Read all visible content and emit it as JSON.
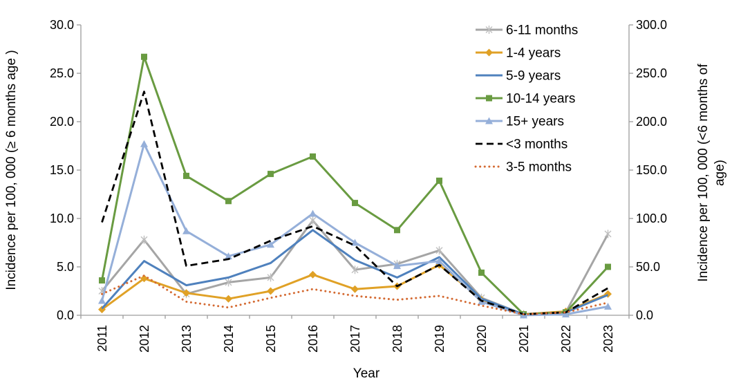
{
  "figure": {
    "xlabel": "Year",
    "left_axis_label": "Incidence per 100, 000 (≥ 6 months age )",
    "right_axis_label_line1": "Incidence per 100, 000 (<6 months of",
    "right_axis_label_line2": "age)"
  },
  "chart_data": {
    "type": "line",
    "title": "",
    "xlabel": "Year",
    "categories": [
      "2011",
      "2012",
      "2013",
      "2014",
      "2015",
      "2016",
      "2017",
      "2018",
      "2019",
      "2020",
      "2021",
      "2022",
      "2023"
    ],
    "left_axis": {
      "label": "Incidence per 100, 000 (≥ 6 months age )",
      "min": 0,
      "max": 30,
      "step": 5,
      "tick_values": [
        0,
        5,
        10,
        15,
        20,
        25,
        30
      ],
      "tick_labels": [
        "0.0",
        "5.0",
        "10.0",
        "15.0",
        "20.0",
        "25.0",
        "30.0"
      ]
    },
    "right_axis": {
      "label": "Incidence per 100, 000 (<6 months of age)",
      "min": 0,
      "max": 300,
      "step": 50,
      "tick_values": [
        0,
        50,
        100,
        150,
        200,
        250,
        300
      ],
      "tick_labels": [
        "0.0",
        "50.0",
        "100.0",
        "150.0",
        "200.0",
        "250.0",
        "300.0"
      ]
    },
    "grid": false,
    "legend_position": "top-right",
    "axis_color": "#9c9c9c",
    "series": [
      {
        "name": "6-11 months",
        "axis": "left",
        "color": "#a5a5a5",
        "marker": "star",
        "marker_color": "#bfbfbf",
        "dash": "solid",
        "values": [
          2.5,
          7.8,
          2.2,
          3.4,
          3.9,
          9.8,
          4.7,
          5.3,
          6.7,
          1.8,
          0.1,
          0.3,
          8.4
        ]
      },
      {
        "name": "1-4 years",
        "axis": "left",
        "color": "#e0a126",
        "marker": "diamond",
        "marker_color": "#e0a126",
        "dash": "solid",
        "values": [
          0.6,
          3.8,
          2.3,
          1.7,
          2.5,
          4.2,
          2.7,
          3.0,
          5.2,
          1.6,
          0.1,
          0.4,
          2.2
        ]
      },
      {
        "name": "5-9 years",
        "axis": "left",
        "color": "#4f81bd",
        "marker": "none",
        "marker_color": "#4f81bd",
        "dash": "solid",
        "values": [
          0.7,
          5.6,
          3.1,
          3.9,
          5.4,
          8.8,
          5.7,
          3.9,
          6.0,
          1.7,
          0.1,
          0.3,
          2.1
        ]
      },
      {
        "name": "10-14 years",
        "axis": "left",
        "color": "#699b41",
        "marker": "square",
        "marker_color": "#699b41",
        "dash": "solid",
        "values": [
          3.6,
          26.7,
          14.4,
          11.8,
          14.6,
          16.4,
          11.6,
          8.8,
          13.9,
          4.4,
          0.1,
          0.3,
          5.0
        ]
      },
      {
        "name": "15+ years",
        "axis": "left",
        "color": "#95afd9",
        "marker": "triangle",
        "marker_color": "#95afd9",
        "dash": "solid",
        "values": [
          1.5,
          17.7,
          8.7,
          6.1,
          7.3,
          10.5,
          7.5,
          5.1,
          5.6,
          1.4,
          0.0,
          0.1,
          0.9
        ]
      },
      {
        "name": "<3 months",
        "axis": "right",
        "color": "#000000",
        "marker": "none",
        "marker_color": "#000000",
        "dash": "dashed",
        "values": [
          96,
          231,
          51,
          58,
          77,
          92,
          72,
          30,
          52,
          15,
          1,
          3,
          28
        ]
      },
      {
        "name": "3-5 months",
        "axis": "right",
        "color": "#d46a32",
        "marker": "none",
        "marker_color": "#d46a32",
        "dash": "dotted",
        "values": [
          22,
          41,
          14,
          8,
          18,
          27,
          20,
          16,
          20,
          10,
          1,
          3,
          13
        ]
      }
    ],
    "legend": [
      "6-11 months",
      "1-4 years",
      "5-9 years",
      "10-14 years",
      "15+ years",
      "<3 months",
      "3-5 months"
    ]
  }
}
